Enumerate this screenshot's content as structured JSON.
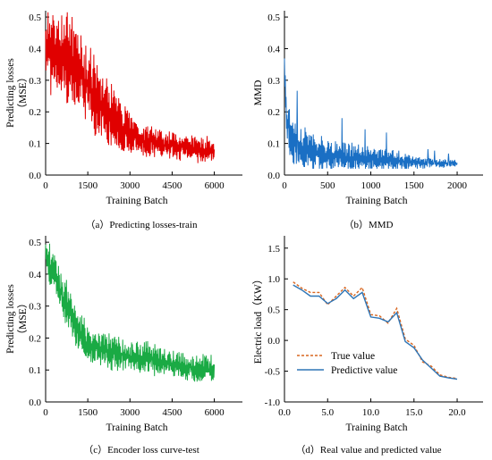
{
  "panels": [
    {
      "caption": "（a）Predicting losses-train",
      "chart_data": {
        "type": "line",
        "title": "",
        "xlabel": "Training Batch",
        "ylabel_line1": "Predicting losses",
        "ylabel_line2": "（MSE）",
        "xlim": [
          0,
          7000
        ],
        "ylim": [
          0,
          0.52
        ],
        "xticks": [
          0,
          1500,
          3000,
          4500,
          6000
        ],
        "xtick_labels": [
          "0",
          "1500",
          "3000",
          "4500",
          "6000"
        ],
        "yticks": [
          0.0,
          0.1,
          0.2,
          0.3,
          0.4,
          0.5
        ],
        "ytick_labels": [
          "0.0",
          "0.1",
          "0.2",
          "0.3",
          "0.4",
          "0.5"
        ],
        "grid": false,
        "series": [
          {
            "color": "#e00000",
            "noisy": true,
            "x": [
              0,
              300,
              700,
              1000,
              1500,
              2000,
              2500,
              3000,
              3500,
              4000,
              4500,
              5000,
              5500,
              6000
            ],
            "center": [
              0.4,
              0.39,
              0.37,
              0.34,
              0.28,
              0.22,
              0.17,
              0.13,
              0.11,
              0.1,
              0.09,
              0.085,
              0.08,
              0.08
            ],
            "amplitude": [
              0.1,
              0.1,
              0.1,
              0.1,
              0.09,
              0.08,
              0.06,
              0.045,
              0.035,
              0.03,
              0.03,
              0.028,
              0.028,
              0.028
            ]
          }
        ]
      }
    },
    {
      "caption": "（b）MMD",
      "chart_data": {
        "type": "line",
        "title": "",
        "xlabel": "Training Batch",
        "ylabel_line1": "MMD",
        "ylabel_line2": "",
        "xlim": [
          0,
          2300
        ],
        "ylim": [
          0,
          0.52
        ],
        "xticks": [
          0,
          500,
          1000,
          1500,
          2000
        ],
        "xtick_labels": [
          "0",
          "500",
          "1000",
          "1500",
          "2000"
        ],
        "yticks": [
          0.0,
          0.1,
          0.2,
          0.3,
          0.4,
          0.5
        ],
        "ytick_labels": [
          "0.0",
          "0.1",
          "0.2",
          "0.3",
          "0.4",
          "0.5"
        ],
        "grid": false,
        "series": [
          {
            "color": "#1a6fc4",
            "noisy": true,
            "x": [
              0,
              20,
              60,
              150,
              300,
              500,
              800,
              1000,
              1300,
              1500,
              1800,
              2000
            ],
            "center": [
              0.36,
              0.2,
              0.12,
              0.09,
              0.07,
              0.065,
              0.055,
              0.05,
              0.045,
              0.04,
              0.038,
              0.035
            ],
            "amplitude": [
              0.02,
              0.06,
              0.06,
              0.05,
              0.045,
              0.04,
              0.03,
              0.025,
              0.025,
              0.015,
              0.01,
              0.008
            ]
          }
        ]
      }
    },
    {
      "caption": "（c）Encoder loss curve-test",
      "chart_data": {
        "type": "line",
        "title": "",
        "xlabel": "Training Batch",
        "ylabel_line1": "Predicting losses",
        "ylabel_line2": "（MSE）",
        "xlim": [
          0,
          7000
        ],
        "ylim": [
          0,
          0.52
        ],
        "xticks": [
          0,
          1500,
          3000,
          4500,
          6000
        ],
        "xtick_labels": [
          "0",
          "1500",
          "3000",
          "4500",
          "6000"
        ],
        "yticks": [
          0.0,
          0.1,
          0.2,
          0.3,
          0.4,
          0.5
        ],
        "ytick_labels": [
          "0.0",
          "0.1",
          "0.2",
          "0.3",
          "0.4",
          "0.5"
        ],
        "grid": false,
        "series": [
          {
            "color": "#1aaa44",
            "noisy": true,
            "x": [
              0,
              200,
              500,
              1000,
              1500,
              2000,
              2500,
              3000,
              3500,
              4000,
              4500,
              5000,
              6000
            ],
            "center": [
              0.48,
              0.42,
              0.35,
              0.25,
              0.18,
              0.16,
              0.15,
              0.145,
              0.14,
              0.13,
              0.12,
              0.11,
              0.1
            ],
            "amplitude": [
              0.04,
              0.05,
              0.05,
              0.05,
              0.04,
              0.04,
              0.04,
              0.035,
              0.035,
              0.035,
              0.03,
              0.03,
              0.03
            ]
          }
        ]
      }
    },
    {
      "caption": "（d）Real value and predicted value",
      "chart_data": {
        "type": "line",
        "title": "",
        "xlabel": "Training Batch",
        "ylabel_line1": "Electric load（KW）",
        "ylabel_line2": "",
        "xlim": [
          0,
          23
        ],
        "ylim": [
          -1.0,
          1.7
        ],
        "xticks": [
          0.0,
          5.0,
          10.0,
          15.0,
          20.0
        ],
        "xtick_labels": [
          "0.0",
          "5.0",
          "10.0",
          "15.0",
          "20.0"
        ],
        "yticks": [
          -1.0,
          -0.5,
          0.0,
          0.5,
          1.0,
          1.5
        ],
        "ytick_labels": [
          "-1.0",
          "-0.5",
          "0.0",
          "0.5",
          "1.0",
          "1.5"
        ],
        "grid": false,
        "legend": "bottom-left",
        "series": [
          {
            "name": "True value",
            "color": "#d9661f",
            "dash": true,
            "x": [
              1,
              2,
              3,
              4,
              5,
              6,
              7,
              8,
              9,
              10,
              11,
              12,
              13,
              14,
              15,
              16,
              17,
              18,
              19,
              20
            ],
            "values": [
              0.95,
              0.85,
              0.78,
              0.78,
              0.58,
              0.72,
              0.86,
              0.72,
              0.86,
              0.42,
              0.4,
              0.28,
              0.52,
              0.02,
              -0.08,
              -0.35,
              -0.42,
              -0.56,
              -0.6,
              -0.62
            ]
          },
          {
            "name": "Predictive value",
            "color": "#2e75b6",
            "dash": false,
            "x": [
              1,
              2,
              3,
              4,
              5,
              6,
              7,
              8,
              9,
              10,
              11,
              12,
              13,
              14,
              15,
              16,
              17,
              18,
              19,
              20
            ],
            "values": [
              0.9,
              0.82,
              0.72,
              0.72,
              0.6,
              0.68,
              0.82,
              0.68,
              0.78,
              0.38,
              0.36,
              0.3,
              0.45,
              -0.02,
              -0.12,
              -0.32,
              -0.45,
              -0.58,
              -0.61,
              -0.63
            ]
          }
        ]
      }
    }
  ]
}
